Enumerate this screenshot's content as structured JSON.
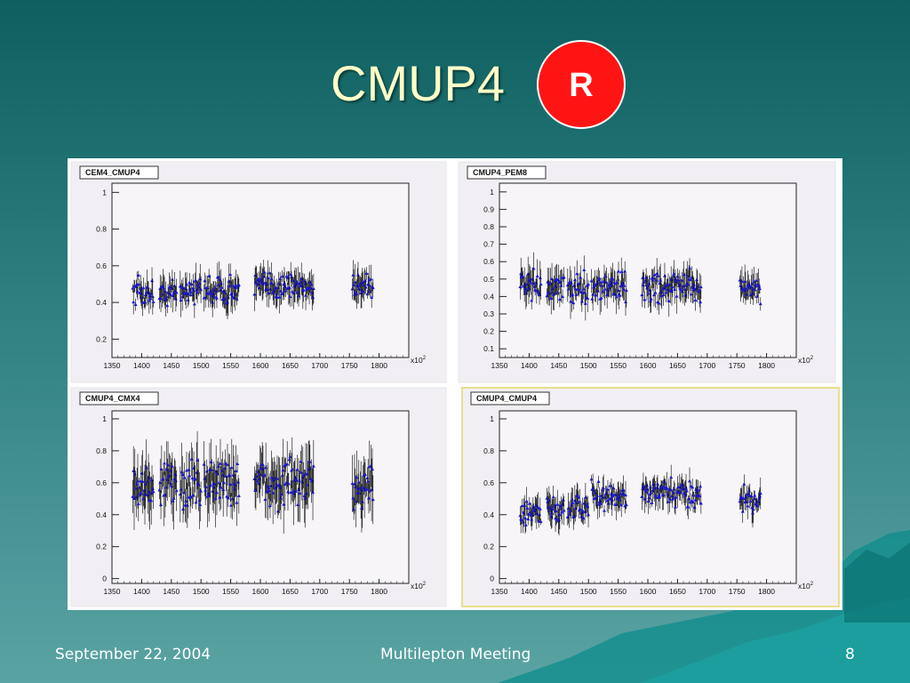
{
  "slide": {
    "title": "CMUP4",
    "badge": "R",
    "footer_date": "September 22, 2004",
    "footer_event": "Multilepton Meeting",
    "page_number": "8"
  },
  "colors": {
    "title": "#ffffc8",
    "badge": "#ff1414",
    "marker": "#1a1ad0",
    "error_bar": "#000000",
    "selected_frame": "#e8e08a"
  },
  "chart_data": [
    {
      "type": "scatter",
      "title": "CEM4_CMUP4",
      "x_multiplier": "x10^2",
      "xlim": [
        1350,
        1850
      ],
      "ylim": [
        0.1,
        1.05
      ],
      "x_ticks": [
        "1350",
        "1400",
        "1450",
        "1500",
        "1550",
        "1600",
        "1650",
        "1700",
        "1750",
        "1800"
      ],
      "y_ticks": [
        "0.2",
        "0.4",
        "0.6",
        "0.8",
        "1"
      ],
      "clusters": [
        {
          "x": [
            1385,
            1420
          ],
          "y_mean": 0.45
        },
        {
          "x": [
            1430,
            1460
          ],
          "y_mean": 0.45
        },
        {
          "x": [
            1465,
            1500
          ],
          "y_mean": 0.47
        },
        {
          "x": [
            1505,
            1565
          ],
          "y_mean": 0.47
        },
        {
          "x": [
            1590,
            1690
          ],
          "y_mean": 0.49
        },
        {
          "x": [
            1755,
            1790
          ],
          "y_mean": 0.5
        }
      ]
    },
    {
      "type": "scatter",
      "title": "CMUP4_PEM8",
      "x_multiplier": "x10^2",
      "xlim": [
        1350,
        1850
      ],
      "ylim": [
        0.05,
        1.05
      ],
      "x_ticks": [
        "1350",
        "1400",
        "1450",
        "1500",
        "1550",
        "1600",
        "1650",
        "1700",
        "1750",
        "1800"
      ],
      "y_ticks": [
        "0.1",
        "0.2",
        "0.3",
        "0.4",
        "0.5",
        "0.6",
        "0.7",
        "0.8",
        "0.9",
        "1"
      ],
      "clusters": [
        {
          "x": [
            1385,
            1420
          ],
          "y_mean": 0.46
        },
        {
          "x": [
            1430,
            1460
          ],
          "y_mean": 0.45
        },
        {
          "x": [
            1465,
            1500
          ],
          "y_mean": 0.45
        },
        {
          "x": [
            1505,
            1565
          ],
          "y_mean": 0.46
        },
        {
          "x": [
            1590,
            1690
          ],
          "y_mean": 0.46
        },
        {
          "x": [
            1755,
            1790
          ],
          "y_mean": 0.45
        }
      ]
    },
    {
      "type": "scatter",
      "title": "CMUP4_CMX4",
      "x_multiplier": "x10^2",
      "xlim": [
        1350,
        1850
      ],
      "ylim": [
        -0.03,
        1.05
      ],
      "x_ticks": [
        "1350",
        "1400",
        "1450",
        "1500",
        "1550",
        "1600",
        "1650",
        "1700",
        "1750",
        "1800"
      ],
      "y_ticks": [
        "0",
        "0.2",
        "0.4",
        "0.6",
        "0.8",
        "1"
      ],
      "clusters": [
        {
          "x": [
            1385,
            1420
          ],
          "y_mean": 0.58
        },
        {
          "x": [
            1430,
            1460
          ],
          "y_mean": 0.59
        },
        {
          "x": [
            1465,
            1500
          ],
          "y_mean": 0.58
        },
        {
          "x": [
            1505,
            1565
          ],
          "y_mean": 0.61
        },
        {
          "x": [
            1590,
            1690
          ],
          "y_mean": 0.59
        },
        {
          "x": [
            1755,
            1790
          ],
          "y_mean": 0.6
        }
      ]
    },
    {
      "type": "scatter",
      "title": "CMUP4_CMUP4",
      "x_multiplier": "x10^2",
      "xlim": [
        1350,
        1850
      ],
      "ylim": [
        -0.03,
        1.05
      ],
      "x_ticks": [
        "1350",
        "1400",
        "1450",
        "1500",
        "1550",
        "1600",
        "1650",
        "1700",
        "1750",
        "1800"
      ],
      "y_ticks": [
        "0",
        "0.2",
        "0.4",
        "0.6",
        "0.8",
        "1"
      ],
      "clusters": [
        {
          "x": [
            1385,
            1420
          ],
          "y_mean": 0.4
        },
        {
          "x": [
            1430,
            1460
          ],
          "y_mean": 0.44
        },
        {
          "x": [
            1465,
            1500
          ],
          "y_mean": 0.45
        },
        {
          "x": [
            1505,
            1565
          ],
          "y_mean": 0.51
        },
        {
          "x": [
            1590,
            1690
          ],
          "y_mean": 0.53
        },
        {
          "x": [
            1755,
            1790
          ],
          "y_mean": 0.5
        }
      ]
    }
  ]
}
